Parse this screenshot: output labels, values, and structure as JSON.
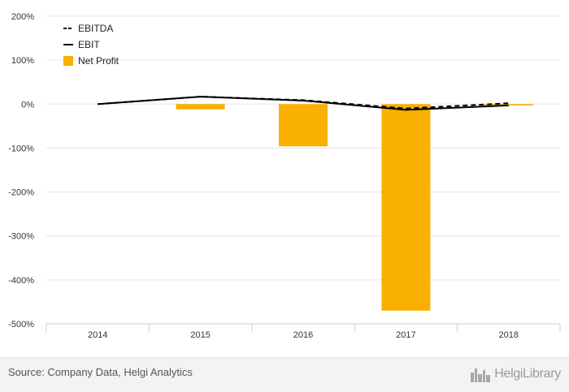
{
  "chart_data": {
    "type": "bar",
    "categories": [
      "2014",
      "2015",
      "2016",
      "2017",
      "2018"
    ],
    "y_ticks": [
      "200%",
      "100%",
      "0%",
      "-100%",
      "-200%",
      "-300%",
      "-400%",
      "-500%"
    ],
    "ylim": [
      -500,
      200
    ],
    "grid": true,
    "legend_position": "top-left",
    "series": [
      {
        "name": "EBITDA",
        "kind": "line",
        "style": "dashed",
        "color": "#000000",
        "values": [
          0,
          17,
          9,
          -10,
          2
        ]
      },
      {
        "name": "EBIT",
        "kind": "line",
        "style": "solid",
        "color": "#000000",
        "values": [
          0,
          17,
          8,
          -13,
          -3
        ]
      },
      {
        "name": "Net Profit",
        "kind": "bar",
        "color": "#F9B000",
        "values": [
          0,
          -12,
          -96,
          -470,
          -3
        ]
      }
    ]
  },
  "footer": {
    "source": "Source: Company Data, Helgi Analytics",
    "brand": "HelgiLibrary",
    "brand_icon": "city-skyline-icon"
  }
}
